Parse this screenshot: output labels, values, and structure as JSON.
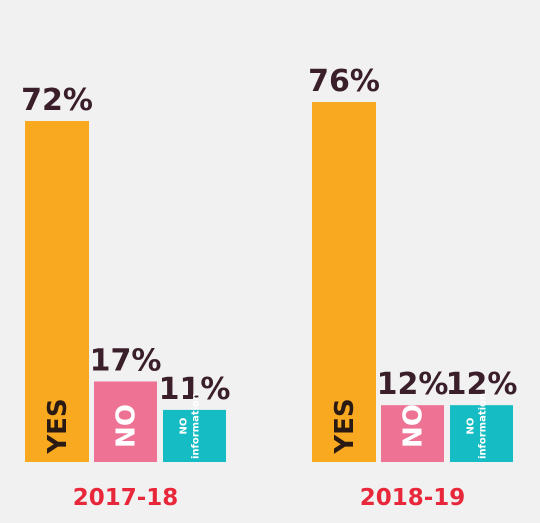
{
  "colors": {
    "yes": "#f9a91f",
    "no": "#ee7294",
    "no_info": "#16bcc3",
    "value_text": "#3a1f2b",
    "period_text": "#e8283a",
    "yes_label_text": "#2a1a14",
    "light_label_text": "#ffffff"
  },
  "chart_data": {
    "type": "bar",
    "title": "",
    "xlabel": "",
    "ylabel": "",
    "ylim": [
      0,
      80
    ],
    "grid": false,
    "legend": "none",
    "categories": [
      "YES",
      "NO",
      "NO information"
    ],
    "groups": [
      {
        "label": "2017-18",
        "bars": [
          {
            "category": "YES",
            "value": 72,
            "value_label": "72%"
          },
          {
            "category": "NO",
            "value": 17,
            "value_label": "17%"
          },
          {
            "category": "NO information",
            "value": 11,
            "value_label": "11%"
          }
        ]
      },
      {
        "label": "2018-19",
        "bars": [
          {
            "category": "YES",
            "value": 76,
            "value_label": "76%"
          },
          {
            "category": "NO",
            "value": 12,
            "value_label": "12%"
          },
          {
            "category": "NO information",
            "value": 12,
            "value_label": "12%"
          }
        ]
      }
    ]
  }
}
